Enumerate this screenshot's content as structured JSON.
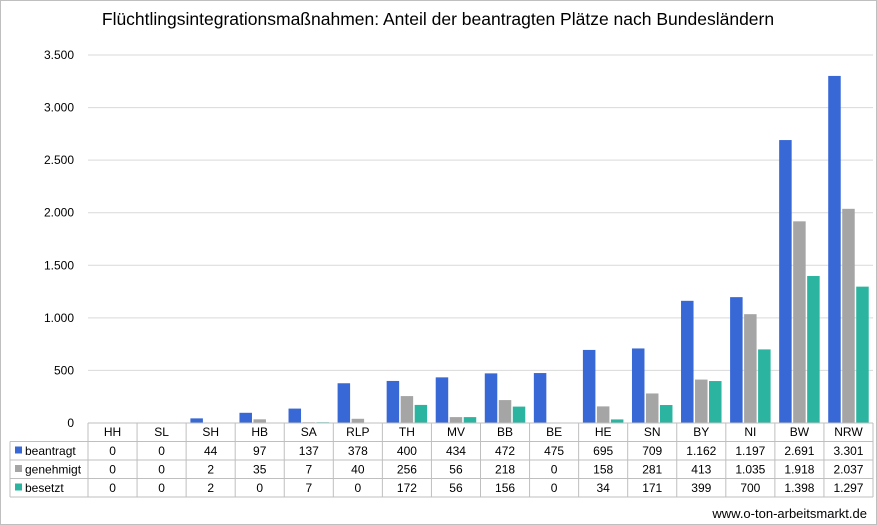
{
  "chart_data": {
    "type": "bar",
    "title": "Flüchtlingsintegrationsmaßnahmen: Anteil der beantragten Plätze nach Bundesländern",
    "categories": [
      "HH",
      "SL",
      "SH",
      "HB",
      "SA",
      "RLP",
      "TH",
      "MV",
      "BB",
      "BE",
      "HE",
      "SN",
      "BY",
      "NI",
      "BW",
      "NRW"
    ],
    "series": [
      {
        "name": "beantragt",
        "color": "#3867D6",
        "values": [
          0,
          0,
          44,
          97,
          137,
          378,
          400,
          434,
          472,
          475,
          695,
          709,
          1162,
          1197,
          2691,
          3301
        ],
        "labels": [
          "0",
          "0",
          "44",
          "97",
          "137",
          "378",
          "400",
          "434",
          "472",
          "475",
          "695",
          "709",
          "1.162",
          "1.197",
          "2.691",
          "3.301"
        ]
      },
      {
        "name": "genehmigt",
        "color": "#A5A5A5",
        "values": [
          0,
          0,
          2,
          35,
          7,
          40,
          256,
          56,
          218,
          0,
          158,
          281,
          413,
          1035,
          1918,
          2037
        ],
        "labels": [
          "0",
          "0",
          "2",
          "35",
          "7",
          "40",
          "256",
          "56",
          "218",
          "0",
          "158",
          "281",
          "413",
          "1.035",
          "1.918",
          "2.037"
        ]
      },
      {
        "name": "besetzt",
        "color": "#2BB5A0",
        "values": [
          0,
          0,
          2,
          0,
          7,
          0,
          172,
          56,
          156,
          0,
          34,
          171,
          399,
          700,
          1398,
          1297
        ],
        "labels": [
          "0",
          "0",
          "2",
          "0",
          "7",
          "0",
          "172",
          "56",
          "156",
          "0",
          "34",
          "171",
          "399",
          "700",
          "1.398",
          "1.297"
        ]
      }
    ],
    "ylim": [
      0,
      3500
    ],
    "yticks": [
      0,
      500,
      1000,
      1500,
      2000,
      2500,
      3000,
      3500
    ],
    "ytick_labels": [
      "0",
      "500",
      "1.000",
      "1.500",
      "2.000",
      "2.500",
      "3.000",
      "3.500"
    ],
    "grid": true,
    "legend": "data-table"
  },
  "source": "www.o-ton-arbeitsmarkt.de"
}
